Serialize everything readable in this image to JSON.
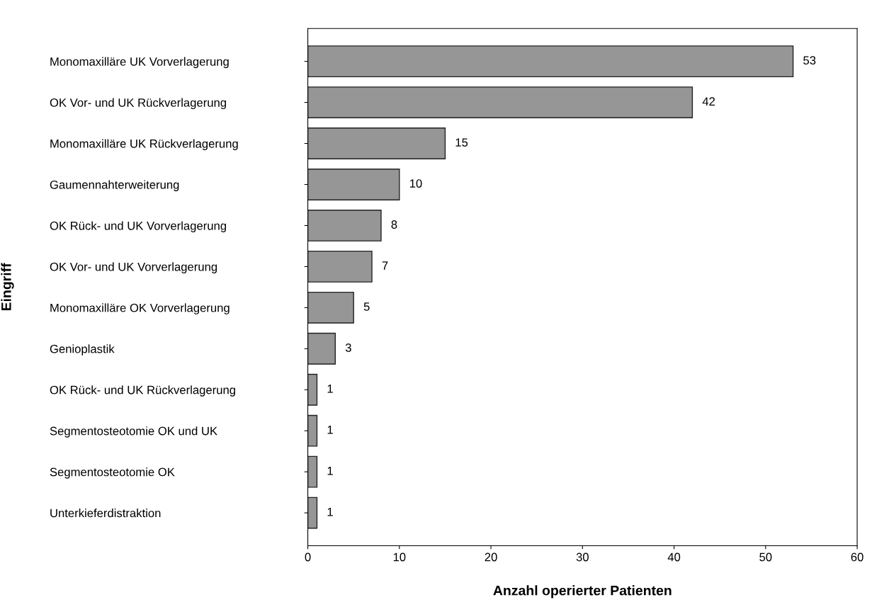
{
  "chart_data": {
    "type": "bar",
    "orientation": "horizontal",
    "xlabel": "Anzahl operierter Patienten",
    "ylabel": "Eingriff",
    "categories": [
      "Monomaxilläre UK Vorverlagerung",
      "OK Vor- und UK Rückverlagerung",
      "Monomaxilläre UK Rückverlagerung",
      "Gaumennahterweiterung",
      "OK Rück- und UK Vorverlagerung",
      "OK Vor- und UK Vorverlagerung",
      "Monomaxilläre OK Vorverlagerung",
      "Genioplastik",
      "OK Rück- und UK Rückverlagerung",
      "Segmentosteotomie OK und UK",
      "Segmentosteotomie OK",
      "Unterkieferdistraktion"
    ],
    "values": [
      53,
      42,
      15,
      10,
      8,
      7,
      5,
      3,
      1,
      1,
      1,
      1
    ],
    "color": "#969696",
    "xlim": [
      0,
      60
    ],
    "xticks": [
      0,
      10,
      20,
      30,
      40,
      50,
      60
    ],
    "data_labels": true,
    "grid": false,
    "legend": false
  }
}
